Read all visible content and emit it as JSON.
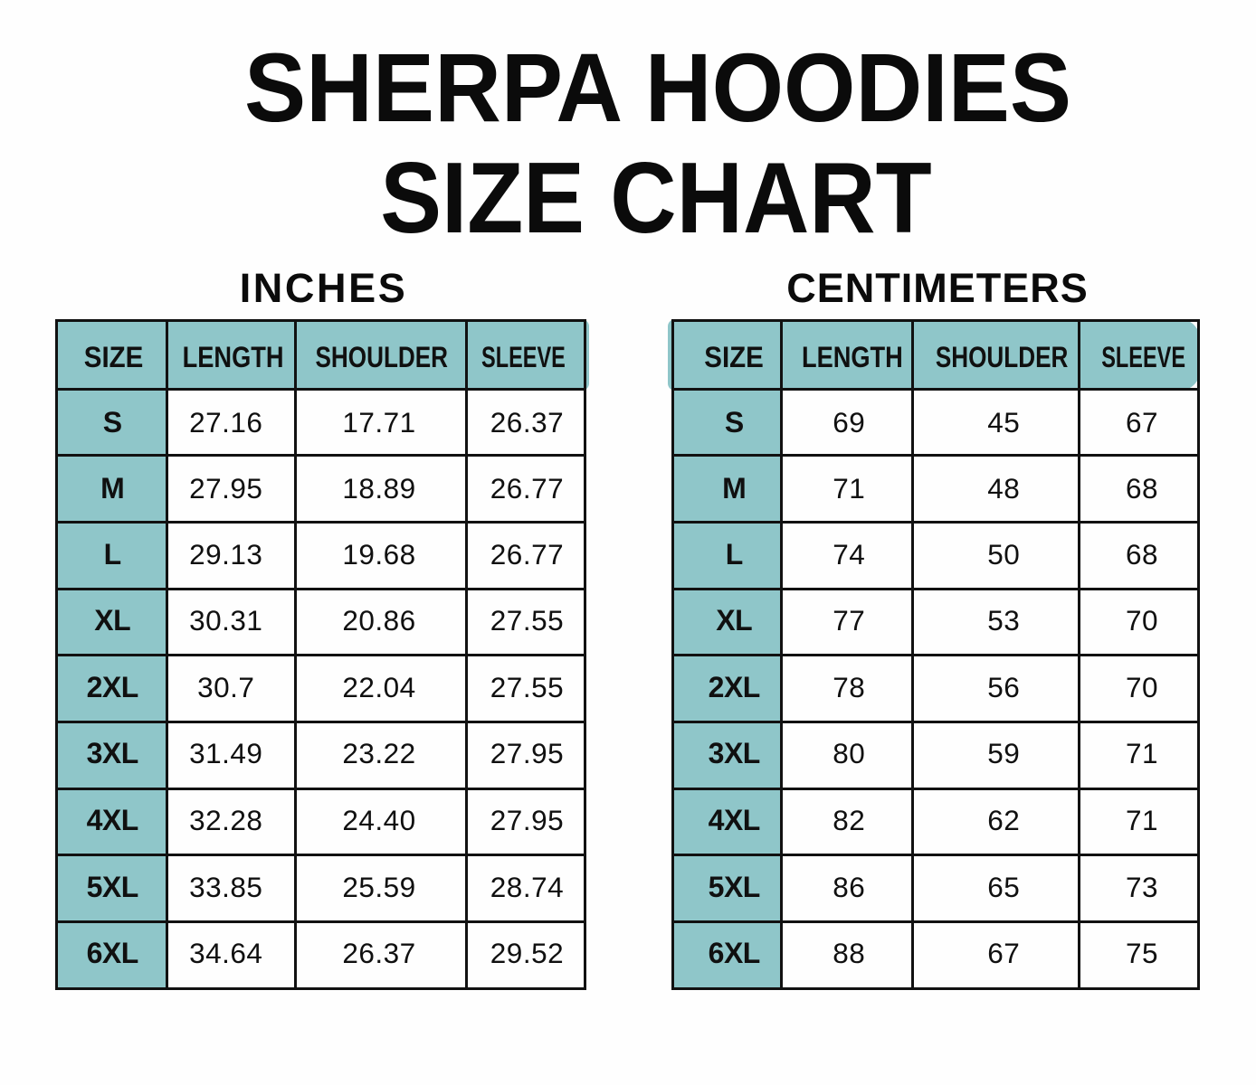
{
  "title": {
    "line1": "SHERPA HOODIES",
    "line2": "SIZE CHART"
  },
  "colors": {
    "accent_teal": "#8fc6c9",
    "line_black": "#111111",
    "text_black": "#0d0d0d",
    "background": "#fefefe"
  },
  "chart_data": [
    {
      "type": "table",
      "title": "INCHES",
      "columns": [
        "SIZE",
        "LENGTH",
        "SHOULDER",
        "SLEEVE"
      ],
      "rows": [
        [
          "S",
          "27.16",
          "17.71",
          "26.37"
        ],
        [
          "M",
          "27.95",
          "18.89",
          "26.77"
        ],
        [
          "L",
          "29.13",
          "19.68",
          "26.77"
        ],
        [
          "XL",
          "30.31",
          "20.86",
          "27.55"
        ],
        [
          "2XL",
          "30.7",
          "22.04",
          "27.55"
        ],
        [
          "3XL",
          "31.49",
          "23.22",
          "27.95"
        ],
        [
          "4XL",
          "32.28",
          "24.40",
          "27.95"
        ],
        [
          "5XL",
          "33.85",
          "25.59",
          "28.74"
        ],
        [
          "6XL",
          "34.64",
          "26.37",
          "29.52"
        ]
      ]
    },
    {
      "type": "table",
      "title": "CENTIMETERS",
      "columns": [
        "SIZE",
        "LENGTH",
        "SHOULDER",
        "SLEEVE"
      ],
      "rows": [
        [
          "S",
          "69",
          "45",
          "67"
        ],
        [
          "M",
          "71",
          "48",
          "68"
        ],
        [
          "L",
          "74",
          "50",
          "68"
        ],
        [
          "XL",
          "77",
          "53",
          "70"
        ],
        [
          "2XL",
          "78",
          "56",
          "70"
        ],
        [
          "3XL",
          "80",
          "59",
          "71"
        ],
        [
          "4XL",
          "82",
          "62",
          "71"
        ],
        [
          "5XL",
          "86",
          "65",
          "73"
        ],
        [
          "6XL",
          "88",
          "67",
          "75"
        ]
      ]
    }
  ]
}
